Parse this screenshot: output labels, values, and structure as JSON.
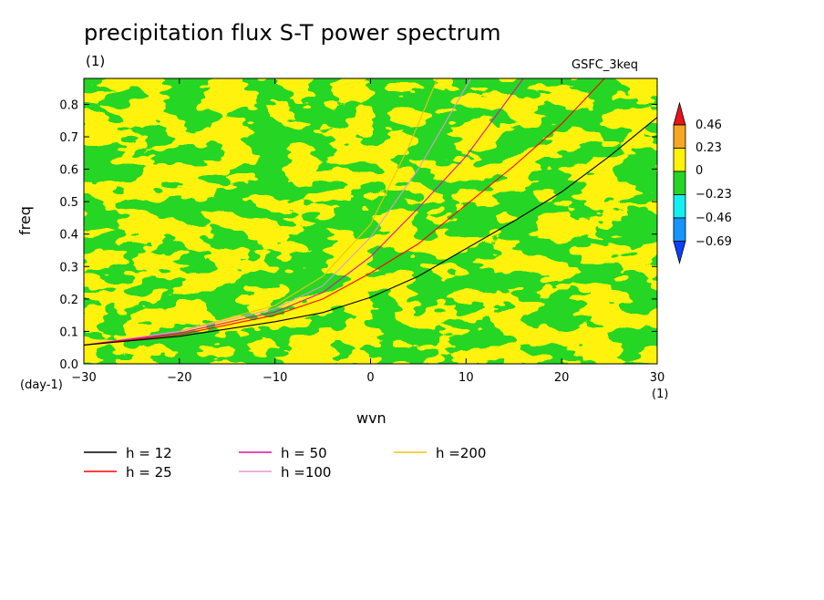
{
  "title": "precipitation flux S-T power spectrum",
  "subtitle_unit": "(1)",
  "experiment": "GSFC_3keq",
  "colorbar": {
    "labels": [
      "0.46",
      "0.23",
      "0",
      "−0.23",
      "−0.46",
      "−0.69"
    ],
    "colors": [
      "#e8141a",
      "#f5a623",
      "#fff20a",
      "#25d625",
      "#14f0f0",
      "#1596ff",
      "#0a40ff"
    ]
  },
  "chart_data": {
    "type": "heatmap",
    "title": "precipitation flux S-T power spectrum",
    "xlabel": "wvn",
    "ylabel": "freq",
    "x_unit": "(1)",
    "y_unit": "(day-1)",
    "xlim": [
      -30,
      30
    ],
    "ylim": [
      0.0,
      0.88
    ],
    "x_ticks": [
      -30,
      -20,
      -10,
      0,
      10,
      20,
      30
    ],
    "y_ticks": [
      0.0,
      0.1,
      0.2,
      0.3,
      0.4,
      0.5,
      0.6,
      0.7,
      0.8
    ],
    "x_tick_labels": [
      "−30",
      "−20",
      "−10",
      "0",
      "10",
      "20",
      "30"
    ],
    "y_tick_labels": [
      "0.0",
      "0.1",
      "0.2",
      "0.3",
      "0.4",
      "0.5",
      "0.6",
      "0.7",
      "0.8"
    ],
    "contour_levels": [
      -0.69,
      -0.46,
      -0.23,
      0,
      0.23,
      0.46
    ],
    "field_description": "noisy field mostly between -0.23 and 0.23 (green and yellow), scattered small cyan patches below -0.23 and orange patches above 0.23",
    "dispersion_curves": [
      {
        "name": "h = 12",
        "color": "#000000",
        "x": [
          -30,
          -20,
          -10,
          -5,
          0,
          5,
          10,
          15,
          20,
          25,
          30
        ],
        "y": [
          0.058,
          0.085,
          0.13,
          0.158,
          0.205,
          0.27,
          0.355,
          0.44,
          0.53,
          0.64,
          0.76
        ]
      },
      {
        "name": "h = 25",
        "color": "#ff0000",
        "x": [
          -30,
          -20,
          -10,
          -5,
          0,
          5,
          10,
          15,
          20,
          24.5
        ],
        "y": [
          0.058,
          0.09,
          0.15,
          0.2,
          0.28,
          0.37,
          0.49,
          0.61,
          0.74,
          0.88
        ]
      },
      {
        "name": "h = 50",
        "color": "#e0109a",
        "x": [
          -30,
          -20,
          -10,
          -5,
          0,
          5,
          10,
          16
        ],
        "y": [
          0.058,
          0.095,
          0.16,
          0.22,
          0.33,
          0.48,
          0.64,
          0.88
        ]
      },
      {
        "name": "h =100",
        "color": "#e09ad2",
        "x": [
          -30,
          -20,
          -10,
          -5,
          0,
          5,
          10.5
        ],
        "y": [
          0.058,
          0.1,
          0.17,
          0.24,
          0.39,
          0.6,
          0.88
        ]
      },
      {
        "name": "h =200",
        "color": "#f0c40a",
        "x": [
          -30,
          -20,
          -10,
          -5,
          0,
          4,
          7
        ],
        "y": [
          0.058,
          0.1,
          0.18,
          0.27,
          0.43,
          0.67,
          0.88
        ]
      }
    ],
    "legend": {
      "placement": "bottom"
    }
  }
}
